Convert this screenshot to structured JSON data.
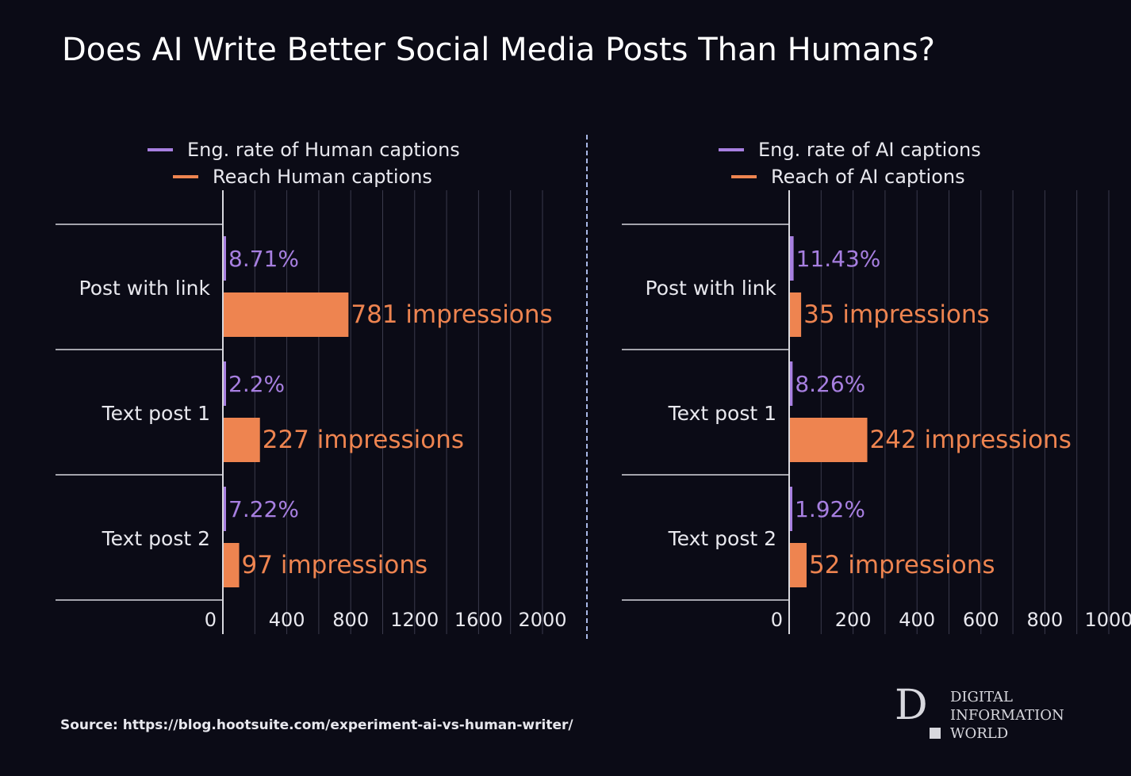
{
  "title": "Does AI Write Better Social Media Posts Than Humans?",
  "source": "Source: https://blog.hootsuite.com/experiment-ai-vs-human-writer/",
  "logo": {
    "mark": "D",
    "line1": "DIGITAL",
    "line2": "INFORMATION",
    "line3": "WORLD"
  },
  "colors": {
    "background": "#0b0b16",
    "engagement": "#a77fe0",
    "reach": "#ee8450",
    "grid": "#3a3a4c",
    "axis": "#d8d8de",
    "text": "#e8e8ee"
  },
  "chart_data": [
    {
      "type": "bar",
      "orientation": "horizontal",
      "title": "Human captions",
      "categories": [
        "Post with link",
        "Text post 1",
        "Text post 2"
      ],
      "series": [
        {
          "name": "Eng. rate of Human captions",
          "values": [
            8.71,
            2.2,
            7.22
          ],
          "labels": [
            "8.71%",
            "2.2%",
            "7.22%"
          ]
        },
        {
          "name": "Reach Human captions",
          "values": [
            781,
            227,
            97
          ],
          "labels": [
            "781 impressions",
            "227 impressions",
            "97 impressions"
          ]
        }
      ],
      "xlim": [
        0,
        2000
      ],
      "xticks": [
        0,
        400,
        800,
        1200,
        1600,
        2000
      ],
      "grid_step": 200,
      "xlabel": "",
      "ylabel": ""
    },
    {
      "type": "bar",
      "orientation": "horizontal",
      "title": "AI captions",
      "categories": [
        "Post with link",
        "Text post 1",
        "Text post 2"
      ],
      "series": [
        {
          "name": "Eng. rate of AI captions",
          "values": [
            11.43,
            8.26,
            1.92
          ],
          "labels": [
            "11.43%",
            "8.26%",
            "1.92%"
          ]
        },
        {
          "name": "Reach of AI captions",
          "values": [
            35,
            242,
            52
          ],
          "labels": [
            "35 impressions",
            "242 impressions",
            "52 impressions"
          ]
        }
      ],
      "xlim": [
        0,
        1000
      ],
      "xticks": [
        0,
        200,
        400,
        600,
        800,
        1000
      ],
      "grid_step": 100,
      "xlabel": "",
      "ylabel": ""
    }
  ]
}
